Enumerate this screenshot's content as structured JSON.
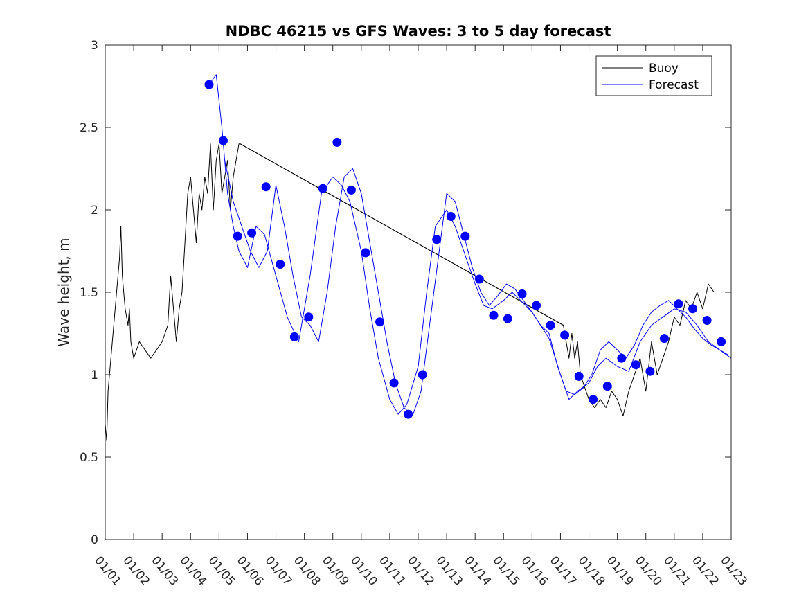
{
  "chart_data": {
    "type": "line",
    "title": "NDBC 46215 vs GFS Waves: 3 to 5 day forecast",
    "xlabel": "",
    "ylabel": "Wave height, m",
    "xlim": [
      0,
      22
    ],
    "ylim": [
      0,
      3
    ],
    "grid": false,
    "x_tick_values": [
      0,
      1,
      2,
      3,
      4,
      5,
      6,
      7,
      8,
      9,
      10,
      11,
      12,
      13,
      14,
      15,
      16,
      17,
      18,
      19,
      20,
      21,
      22
    ],
    "x_tick_labels": [
      "01/01",
      "01/02",
      "01/03",
      "01/04",
      "01/05",
      "01/06",
      "01/07",
      "01/08",
      "01/09",
      "01/10",
      "01/11",
      "01/12",
      "01/13",
      "01/14",
      "01/15",
      "01/16",
      "01/17",
      "01/18",
      "01/19",
      "01/20",
      "01/21",
      "01/22",
      "01/23"
    ],
    "y_tick_values": [
      0,
      0.5,
      1,
      1.5,
      2,
      2.5,
      3
    ],
    "y_tick_labels": [
      "0",
      "0.5",
      "1",
      "1.5",
      "2",
      "2.5",
      "3"
    ],
    "legend_position": "top-right",
    "series": [
      {
        "name": "Buoy",
        "color": "#000000",
        "style": "line",
        "x": [
          0,
          0.05,
          0.1,
          0.2,
          0.3,
          0.4,
          0.5,
          0.55,
          0.6,
          0.65,
          0.7,
          0.8,
          0.85,
          0.9,
          1.0,
          1.1,
          1.2,
          1.4,
          1.6,
          1.8,
          2.0,
          2.2,
          2.3,
          2.4,
          2.5,
          2.6,
          2.7,
          2.8,
          2.9,
          3.0,
          3.1,
          3.2,
          3.3,
          3.4,
          3.5,
          3.6,
          3.7,
          3.8,
          3.9,
          4.0,
          4.1,
          4.2,
          4.3,
          4.4,
          4.5,
          4.6,
          4.7,
          4.75,
          16.1,
          16.2,
          16.3,
          16.4,
          16.5,
          16.6,
          16.7,
          16.8,
          16.9,
          17.0,
          17.2,
          17.4,
          17.6,
          17.8,
          18.0,
          18.2,
          18.4,
          18.6,
          18.8,
          19.0,
          19.2,
          19.4,
          19.6,
          19.8,
          20.0,
          20.2,
          20.4,
          20.6,
          20.8,
          21.0,
          21.2,
          21.4
        ],
        "values": [
          0.7,
          0.6,
          0.9,
          1.1,
          1.3,
          1.5,
          1.7,
          1.9,
          1.6,
          1.5,
          1.4,
          1.3,
          1.4,
          1.2,
          1.1,
          1.15,
          1.2,
          1.15,
          1.1,
          1.15,
          1.2,
          1.3,
          1.6,
          1.4,
          1.2,
          1.4,
          1.5,
          1.8,
          2.1,
          2.2,
          2.0,
          1.8,
          2.1,
          2.0,
          2.2,
          2.1,
          2.4,
          2.0,
          2.3,
          2.4,
          2.1,
          2.2,
          2.3,
          2.0,
          2.2,
          2.3,
          2.4,
          2.4,
          1.3,
          1.2,
          1.1,
          1.25,
          1.1,
          1.2,
          1.0,
          0.95,
          0.9,
          0.85,
          0.8,
          0.85,
          0.8,
          0.9,
          0.85,
          0.75,
          0.9,
          1.0,
          1.1,
          0.9,
          1.2,
          1.0,
          1.1,
          1.2,
          1.35,
          1.3,
          1.45,
          1.4,
          1.5,
          1.4,
          1.55,
          1.5
        ]
      },
      {
        "name": "Buoy",
        "color": "#000000",
        "style": "line",
        "x": [
          4.75,
          16.1
        ],
        "values": [
          2.4,
          1.3
        ]
      },
      {
        "name": "Forecast",
        "color": "#0000ff",
        "style": "line",
        "x": [
          3.6,
          3.9,
          4.1,
          4.3,
          4.5,
          4.7,
          5.0,
          5.3,
          5.6,
          6.0,
          6.4,
          6.8,
          7.2,
          7.6,
          8.0,
          8.3,
          8.6,
          9.0,
          9.3,
          9.6,
          10.0,
          10.3,
          10.6,
          11.0,
          11.3,
          11.6,
          12.0,
          12.3,
          12.6,
          13.0,
          13.3,
          13.6,
          14.0,
          14.3,
          14.6,
          15.0,
          15.3,
          15.6,
          16.0,
          16.3,
          16.6,
          17.0,
          17.3,
          17.6,
          18.0,
          18.4,
          18.8,
          19.2,
          19.6,
          20.0,
          20.4,
          20.8,
          21.2,
          21.6,
          22.0
        ],
        "values": [
          2.75,
          2.82,
          2.5,
          2.1,
          1.9,
          1.75,
          1.65,
          1.9,
          1.85,
          1.6,
          1.35,
          1.2,
          1.6,
          2.1,
          2.2,
          2.15,
          2.05,
          1.75,
          1.4,
          1.1,
          0.85,
          0.76,
          0.82,
          1.05,
          1.5,
          1.9,
          2.0,
          1.9,
          1.75,
          1.55,
          1.42,
          1.4,
          1.45,
          1.5,
          1.45,
          1.38,
          1.3,
          1.22,
          1.0,
          0.85,
          0.9,
          0.95,
          1.05,
          1.1,
          1.05,
          1.02,
          1.2,
          1.3,
          1.35,
          1.4,
          1.38,
          1.3,
          1.2,
          1.15,
          1.1
        ]
      },
      {
        "name": "Forecast",
        "color": "#0000ff",
        "style": "line",
        "x": [
          4.2,
          4.5,
          4.8,
          5.1,
          5.4,
          5.7,
          6.0,
          6.3,
          6.6,
          6.9,
          7.2,
          7.5,
          7.8,
          8.1,
          8.4,
          8.7,
          9.0,
          9.3,
          9.6,
          9.9,
          10.2,
          10.5,
          10.8,
          11.1,
          11.4,
          11.7,
          12.0,
          12.3,
          12.6,
          12.9,
          13.2,
          13.5,
          13.8,
          14.1,
          14.4,
          14.7,
          15.0,
          15.3,
          15.6,
          15.9,
          16.2,
          16.5,
          16.8,
          17.1,
          17.4,
          17.7,
          18.0,
          18.3,
          18.6,
          18.9,
          19.2,
          19.5,
          19.8,
          20.1,
          20.4,
          20.7,
          21.0,
          21.3,
          21.6,
          21.9
        ],
        "values": [
          2.3,
          2.05,
          1.9,
          1.75,
          1.65,
          1.75,
          2.15,
          1.9,
          1.6,
          1.35,
          1.3,
          1.2,
          1.5,
          1.9,
          2.2,
          2.25,
          2.1,
          1.8,
          1.5,
          1.2,
          0.95,
          0.8,
          0.75,
          0.9,
          1.3,
          1.7,
          2.1,
          2.05,
          1.85,
          1.65,
          1.5,
          1.42,
          1.48,
          1.55,
          1.52,
          1.45,
          1.38,
          1.3,
          1.25,
          1.05,
          0.9,
          0.88,
          0.92,
          1.0,
          1.15,
          1.2,
          1.15,
          1.1,
          1.18,
          1.3,
          1.38,
          1.42,
          1.45,
          1.4,
          1.35,
          1.28,
          1.22,
          1.18,
          1.15,
          1.12
        ]
      },
      {
        "name": "Forecast",
        "color": "#0000ff",
        "style": "markers",
        "x": [
          3.65,
          4.15,
          4.65,
          5.15,
          5.65,
          6.15,
          6.65,
          7.15,
          7.65,
          8.15,
          8.65,
          9.15,
          9.65,
          10.15,
          10.65,
          11.15,
          11.65,
          12.15,
          12.65,
          13.15,
          13.65,
          14.15,
          14.65,
          15.15,
          15.65,
          16.15,
          16.65,
          17.15,
          17.65,
          18.15,
          18.65,
          19.15,
          19.65,
          20.15,
          20.65,
          21.15,
          21.65
        ],
        "values": [
          2.76,
          2.42,
          1.84,
          1.86,
          2.14,
          1.67,
          1.23,
          1.35,
          2.13,
          2.41,
          2.12,
          1.74,
          1.32,
          0.95,
          0.76,
          1.0,
          1.82,
          1.96,
          1.84,
          1.58,
          1.36,
          1.34,
          1.49,
          1.42,
          1.3,
          1.24,
          0.99,
          0.85,
          0.93,
          1.1,
          1.06,
          1.02,
          1.22,
          1.43,
          1.4,
          1.33,
          1.2
        ]
      }
    ]
  }
}
